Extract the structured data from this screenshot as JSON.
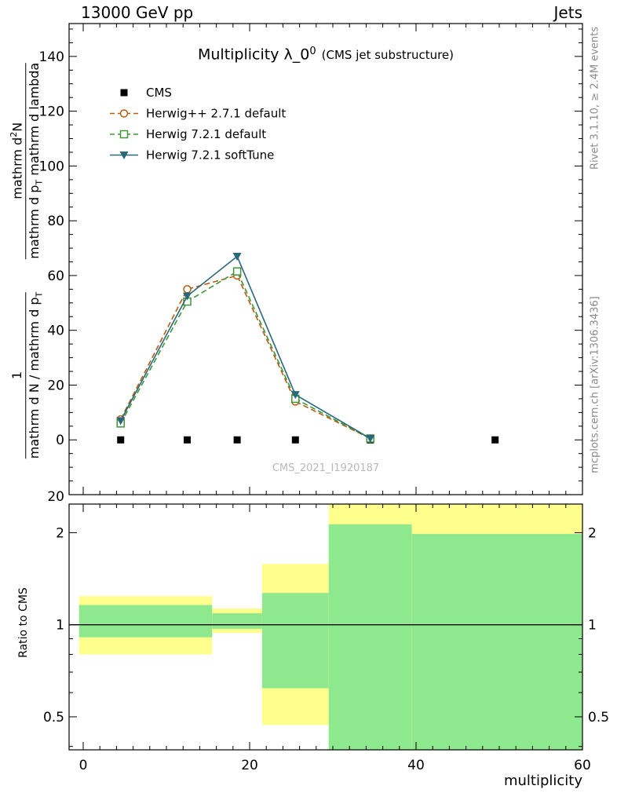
{
  "header": {
    "left": "13000 GeV pp",
    "right": "Jets"
  },
  "title": {
    "main": "Multiplicity λ_0",
    "sup": "0",
    "note": "(CMS jet substructure)"
  },
  "watermark": "CMS_2021_I1920187",
  "side_labels": {
    "top_right": "Rivet 3.1.10, ≥ 2.4M events",
    "bottom_right": "mcplots.cern.ch [arXiv:1306.3436]"
  },
  "ylabel": {
    "f1_num": "1",
    "f1_den_pre": "mathrm d N / mathrm d p",
    "f1_den_sub": "T",
    "f2_num_pre": "mathrm d",
    "f2_num_sup": "2",
    "f2_num_post": "N",
    "f2_den_pre": "mathrm d p",
    "f2_den_sub": "T",
    "f2_den_post": " mathrm d lambda"
  },
  "axes": {
    "x": {
      "label": "multiplicity",
      "ticks": [
        0,
        20,
        40,
        60
      ],
      "minor_step": 2,
      "lim": [
        -1.7,
        60
      ]
    },
    "main_y": {
      "ticks": [
        0,
        20,
        40,
        60,
        80,
        100,
        120,
        140
      ],
      "minor_step": 5,
      "lim": [
        -20,
        152
      ],
      "bottom_edge_label": "20"
    },
    "ratio_y": {
      "label": "Ratio to CMS",
      "scale": "log",
      "ticks": [
        0.5,
        1,
        2
      ],
      "tick_labels": [
        "0.5",
        "1",
        "2"
      ],
      "minor_ticks": [
        0.4,
        0.6,
        0.7,
        0.8,
        0.9
      ],
      "lim": [
        0.39,
        2.48
      ]
    }
  },
  "chart_data": {
    "type": "line",
    "title": "Multiplicity λ_0^0 (CMS jet substructure)",
    "xlabel": "multiplicity",
    "ylabel": "1/(mathrm d N/mathrm d p_T) mathrm d^2 N/(mathrm d p_T mathrm d lambda)",
    "xlim": [
      -1.7,
      60
    ],
    "ylim_main": [
      -20,
      152
    ],
    "ratio_ylim": [
      0.39,
      2.48
    ],
    "legend_position": "top-left",
    "grid": false,
    "x_bin_centers": [
      4.5,
      12.5,
      18.5,
      25.5,
      34.5,
      49.5
    ],
    "series": [
      {
        "name": "CMS",
        "marker": "filled-square",
        "color": "#000000",
        "line": "none",
        "x": [
          4.5,
          12.5,
          18.5,
          25.5,
          34.5,
          49.5
        ],
        "y": [
          0,
          0,
          0,
          0,
          0,
          0
        ]
      },
      {
        "name": "Herwig++ 2.7.1 default",
        "marker": "open-circle",
        "color": "#b75c12",
        "line": "dashed",
        "x": [
          4.5,
          12.5,
          18.5,
          25.5,
          34.5
        ],
        "y": [
          7.5,
          55,
          60,
          14,
          0.5
        ]
      },
      {
        "name": "Herwig 7.2.1 default",
        "marker": "open-square",
        "color": "#3f9639",
        "line": "dashed",
        "x": [
          4.5,
          12.5,
          18.5,
          25.5,
          34.5
        ],
        "y": [
          6,
          50.5,
          61.5,
          15,
          0.5
        ]
      },
      {
        "name": "Herwig 7.2.1 softTune",
        "marker": "filled-triangle-down",
        "color": "#29687a",
        "line": "solid",
        "x": [
          4.5,
          12.5,
          18.5,
          25.5,
          34.5
        ],
        "y": [
          7,
          52.5,
          67,
          16.5,
          0.5
        ]
      }
    ],
    "ratio_reference": 1,
    "ratio_bands": [
      {
        "x0": -0.5,
        "x1": 15.5,
        "yellow": [
          0.8,
          1.24
        ],
        "green": [
          0.91,
          1.16
        ]
      },
      {
        "x0": 15.5,
        "x1": 21.5,
        "yellow": [
          0.94,
          1.13
        ],
        "green": [
          0.97,
          1.09
        ]
      },
      {
        "x0": 21.5,
        "x1": 29.5,
        "yellow": [
          0.47,
          1.58
        ],
        "green": [
          0.62,
          1.27
        ]
      },
      {
        "x0": 29.5,
        "x1": 39.5,
        "yellow": [
          0.39,
          2.48
        ],
        "green": [
          0.39,
          2.13
        ]
      },
      {
        "x0": 39.5,
        "x1": 60,
        "yellow": [
          0.39,
          2.48
        ],
        "green": [
          0.39,
          1.98
        ]
      }
    ],
    "band_colors": {
      "yellow": "#ffff8e",
      "green": "#8ee88e"
    }
  }
}
